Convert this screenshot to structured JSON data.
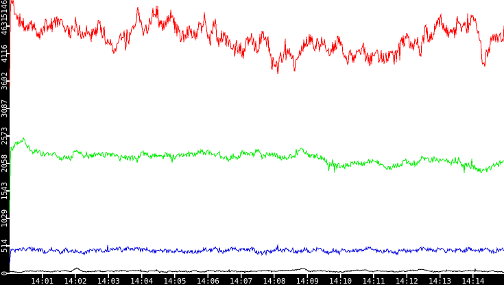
{
  "chart_data": {
    "type": "line",
    "title": "",
    "grid": false,
    "legend": false,
    "x_axis": {
      "tick_labels": [
        "14:01",
        "14:02",
        "14:03",
        "14:04",
        "14:05",
        "14:06",
        "14:07",
        "14:08",
        "14:09",
        "14:10",
        "14:11",
        "14:12",
        "14:13",
        "14:14"
      ],
      "start_time": "14:00",
      "end_time": "14:15"
    },
    "y_axis": {
      "tick_labels": [
        "0",
        "514",
        "1029",
        "1543",
        "2058",
        "2573",
        "3087",
        "3602",
        "4116",
        "4631",
        "5146"
      ],
      "tick_values": [
        0,
        514,
        1029,
        1543,
        2058,
        2573,
        3087,
        3602,
        4116,
        4631,
        5146
      ],
      "min": 0,
      "max": 5172
    },
    "series": [
      {
        "name": "red-series",
        "color": "#ff0000",
        "seed": 11,
        "noise": {
          "fast": 140,
          "walk": 200,
          "spike": 260
        },
        "clamp": [
          1800,
          5170
        ],
        "trend_points": [
          [
            0,
            2550
          ],
          [
            0.04,
            5120
          ],
          [
            0.25,
            4880
          ],
          [
            0.8,
            4620
          ],
          [
            1.5,
            4580
          ],
          [
            2.3,
            4700
          ],
          [
            2.9,
            4500
          ],
          [
            3.2,
            4280
          ],
          [
            3.6,
            4560
          ],
          [
            4.0,
            4750
          ],
          [
            4.5,
            4820
          ],
          [
            5.2,
            4570
          ],
          [
            5.9,
            4600
          ],
          [
            6.5,
            4350
          ],
          [
            7.1,
            4150
          ],
          [
            7.7,
            4300
          ],
          [
            8.0,
            4050
          ],
          [
            8.6,
            3950
          ],
          [
            9.2,
            4350
          ],
          [
            9.8,
            4250
          ],
          [
            10.4,
            4050
          ],
          [
            11.0,
            4000
          ],
          [
            11.3,
            3900
          ],
          [
            11.8,
            4300
          ],
          [
            12.3,
            4250
          ],
          [
            12.8,
            4500
          ],
          [
            13.4,
            4650
          ],
          [
            13.85,
            4750
          ],
          [
            14.1,
            4550
          ],
          [
            14.35,
            4050
          ],
          [
            14.7,
            4500
          ],
          [
            14.95,
            4600
          ]
        ]
      },
      {
        "name": "green-series",
        "color": "#00ee00",
        "seed": 22,
        "noise": {
          "fast": 50,
          "walk": 55,
          "spike": 120
        },
        "clamp": [
          450,
          2600
        ],
        "trend_points": [
          [
            0,
            500
          ],
          [
            0.04,
            2300
          ],
          [
            0.25,
            2450
          ],
          [
            0.45,
            2500
          ],
          [
            0.7,
            2280
          ],
          [
            1.5,
            2200
          ],
          [
            2.5,
            2230
          ],
          [
            3.5,
            2180
          ],
          [
            4.2,
            2220
          ],
          [
            5.0,
            2180
          ],
          [
            5.7,
            2250
          ],
          [
            6.3,
            2180
          ],
          [
            7.0,
            2220
          ],
          [
            7.6,
            2230
          ],
          [
            8.3,
            2200
          ],
          [
            8.9,
            2280
          ],
          [
            9.4,
            2150
          ],
          [
            9.8,
            2060
          ],
          [
            10.5,
            2050
          ],
          [
            11.0,
            2080
          ],
          [
            11.35,
            1960
          ],
          [
            11.7,
            2070
          ],
          [
            12.2,
            2080
          ],
          [
            12.8,
            2150
          ],
          [
            13.3,
            2080
          ],
          [
            13.8,
            2000
          ],
          [
            14.4,
            1890
          ],
          [
            14.7,
            2060
          ],
          [
            14.95,
            2110
          ]
        ]
      },
      {
        "name": "blue-series",
        "color": "#0000dd",
        "seed": 33,
        "noise": {
          "fast": 35,
          "walk": 40,
          "spike": 70
        },
        "clamp": [
          160,
          620
        ],
        "trend_points": [
          [
            0,
            30
          ],
          [
            0.04,
            420
          ],
          [
            1,
            430
          ],
          [
            2,
            400
          ],
          [
            3,
            430
          ],
          [
            4,
            440
          ],
          [
            5,
            410
          ],
          [
            6,
            430
          ],
          [
            7,
            450
          ],
          [
            7.5,
            400
          ],
          [
            8,
            420
          ],
          [
            9,
            430
          ],
          [
            10,
            410
          ],
          [
            11,
            440
          ],
          [
            12,
            420
          ],
          [
            13,
            440
          ],
          [
            14,
            430
          ],
          [
            14.95,
            420
          ]
        ]
      },
      {
        "name": "black-series",
        "color": "#000000",
        "seed": 44,
        "noise": {
          "fast": 9,
          "walk": 12,
          "spike": 35
        },
        "clamp": [
          6,
          160
        ],
        "trend_points": [
          [
            0,
            25
          ],
          [
            1,
            40
          ],
          [
            1.9,
            45
          ],
          [
            2.05,
            95
          ],
          [
            2.2,
            40
          ],
          [
            3,
            35
          ],
          [
            4,
            45
          ],
          [
            5,
            35
          ],
          [
            6,
            40
          ],
          [
            7,
            35
          ],
          [
            8,
            45
          ],
          [
            8.9,
            75
          ],
          [
            9.05,
            40
          ],
          [
            10,
            35
          ],
          [
            10.7,
            65
          ],
          [
            10.9,
            40
          ],
          [
            11.8,
            40
          ],
          [
            12.5,
            70
          ],
          [
            12.7,
            40
          ],
          [
            13.5,
            40
          ],
          [
            14.2,
            50
          ],
          [
            14.95,
            35
          ]
        ]
      }
    ]
  },
  "colors": {
    "plot_background": "#ffffff",
    "axis_strip_background": "#000000",
    "tick_color": "#ffffff",
    "label_color": "#ffffff"
  }
}
